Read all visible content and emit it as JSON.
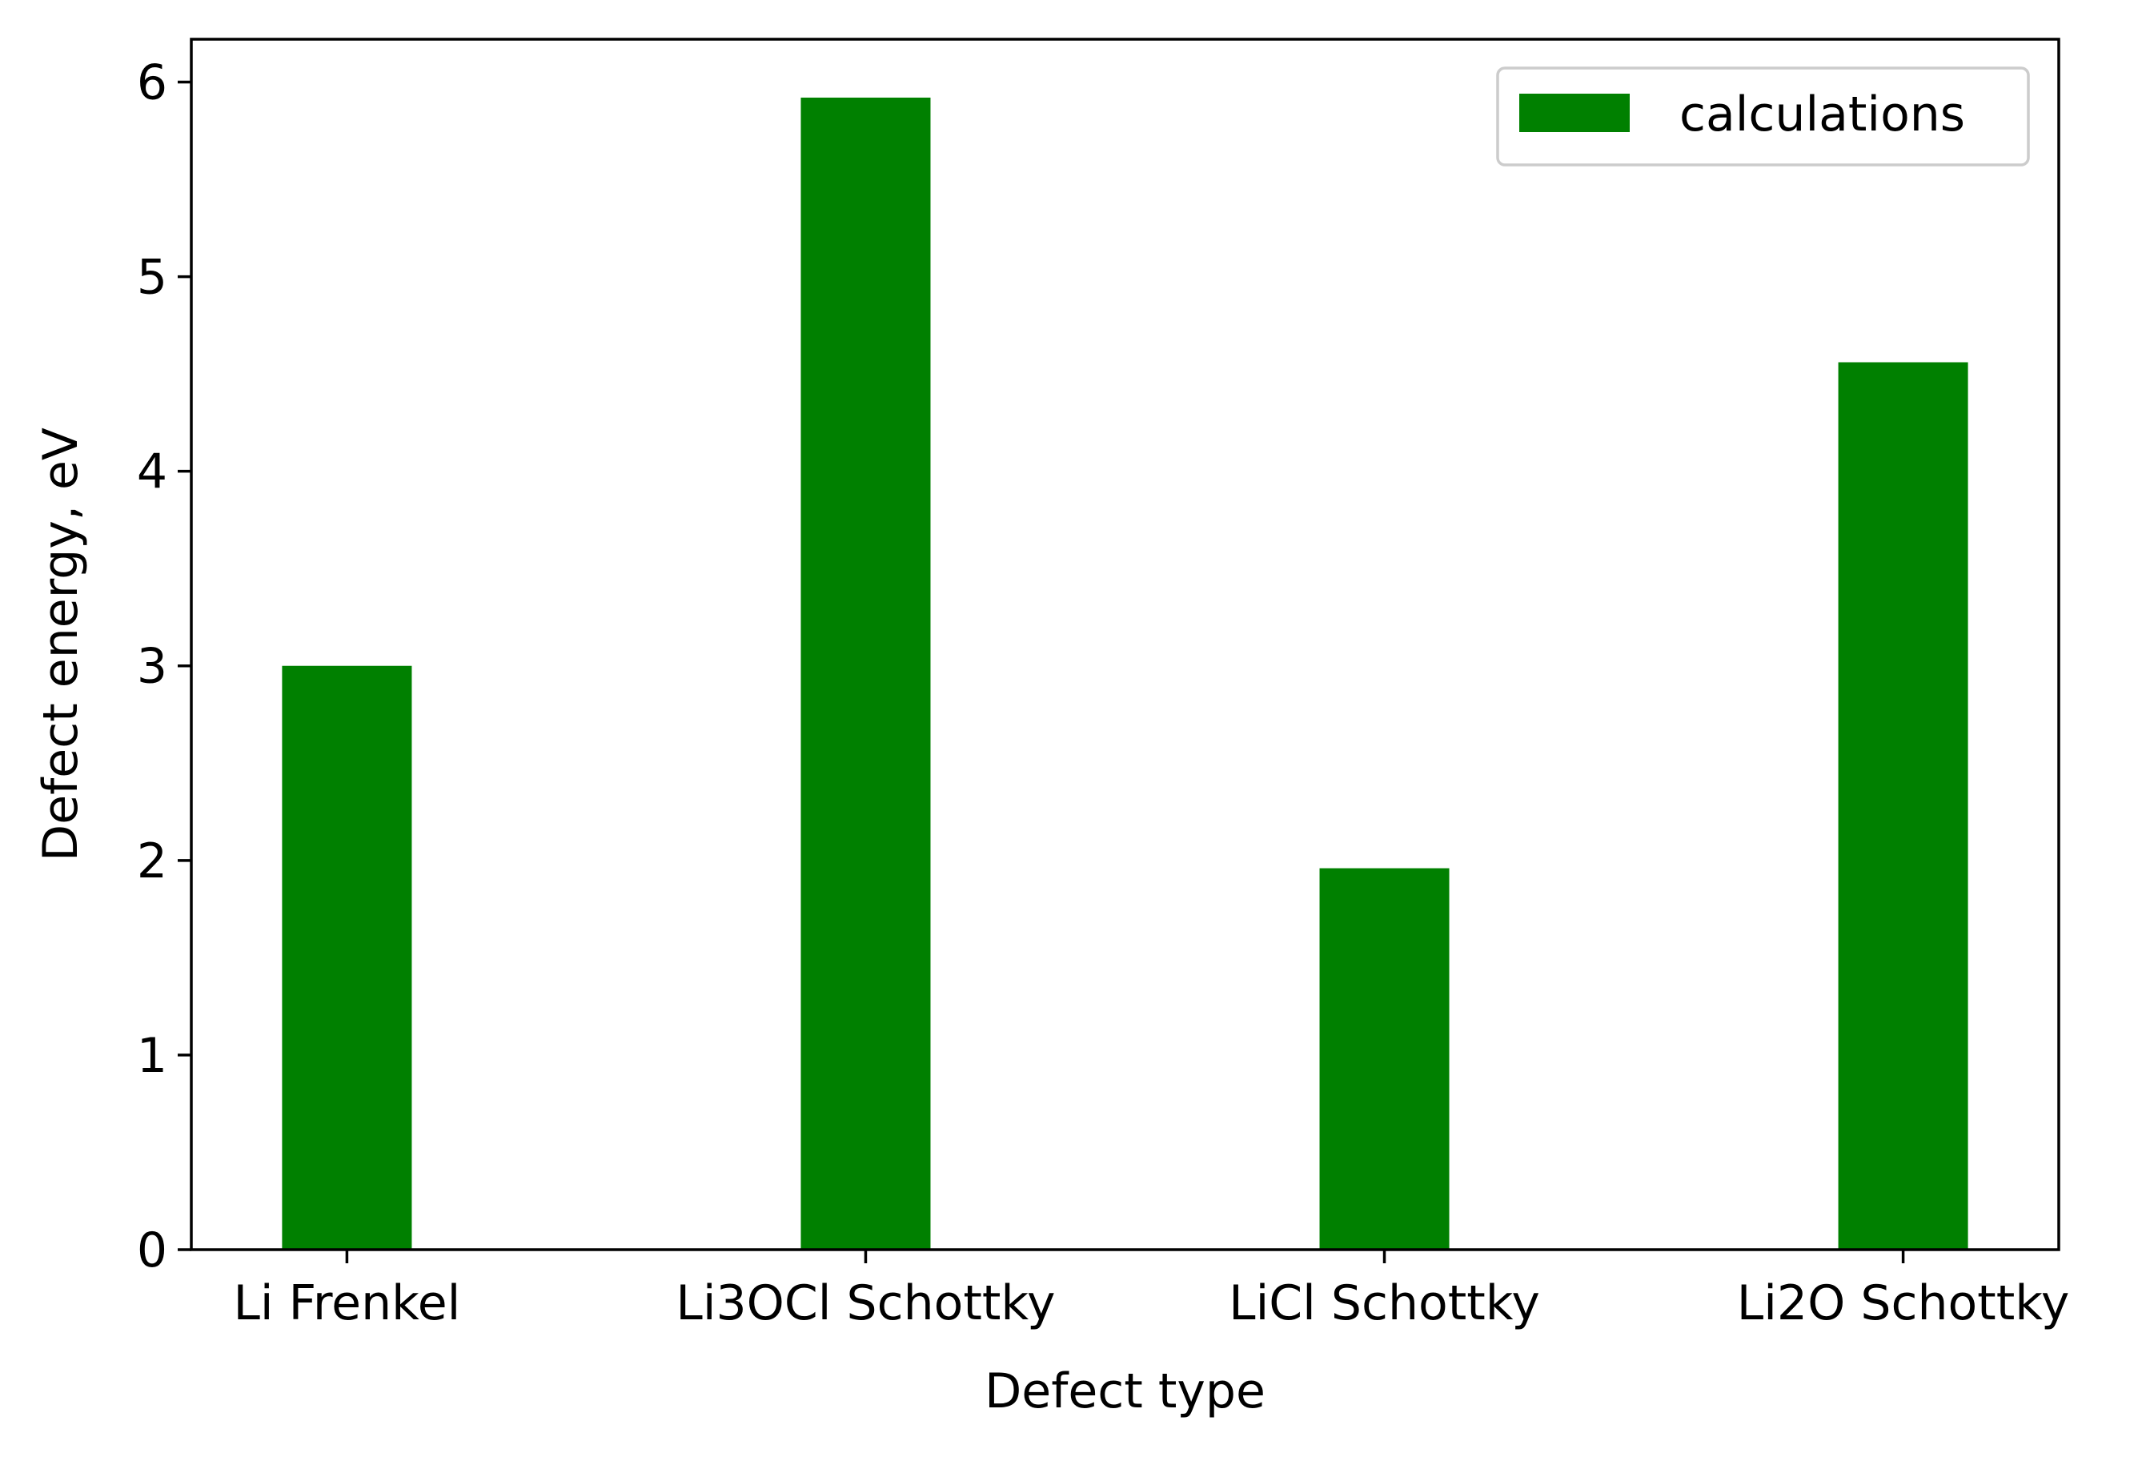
{
  "chart_data": {
    "type": "bar",
    "categories": [
      "Li Frenkel",
      "Li3OCl Schottky",
      "LiCl Schottky",
      "Li2O Schottky"
    ],
    "series": [
      {
        "name": "calculations",
        "values": [
          3.0,
          5.92,
          1.96,
          4.56
        ],
        "color": "#008000"
      }
    ],
    "xlabel": "Defect type",
    "ylabel": "Defect energy, eV",
    "ylim": [
      0,
      6.22
    ],
    "yticks": [
      0,
      1,
      2,
      3,
      4,
      5,
      6
    ],
    "grid": false,
    "legend_position": "upper right"
  }
}
